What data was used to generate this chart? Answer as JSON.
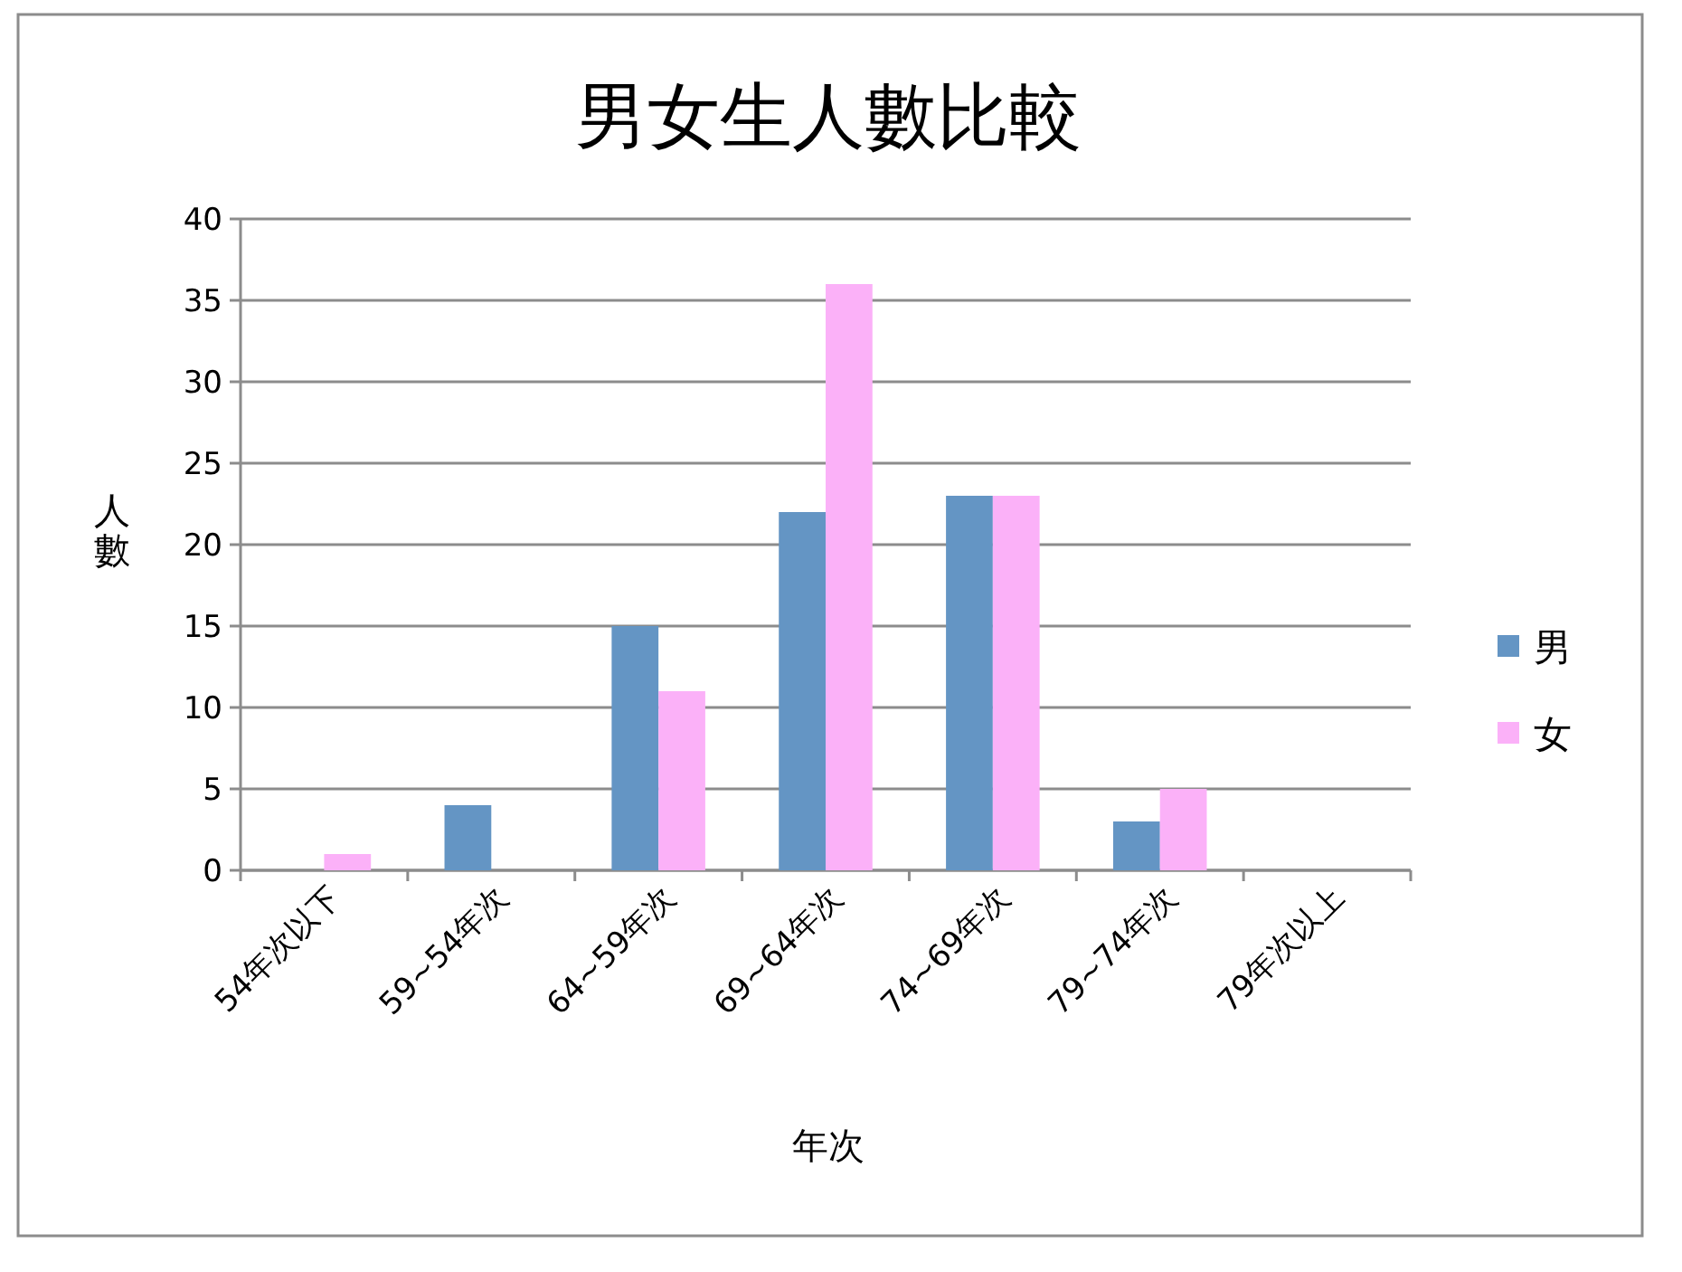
{
  "chart_data": {
    "type": "bar",
    "title": "男女生人數比較",
    "xlabel": "年次",
    "ylabel": "人數",
    "categories": [
      "54年次以下",
      "59~54年次",
      "64~59年次",
      "69~64年次",
      "74~69年次",
      "79~74年次",
      "79年次以上"
    ],
    "series": [
      {
        "name": "男",
        "color": "#6495c4",
        "values": [
          0,
          4,
          15,
          22,
          23,
          3,
          0
        ]
      },
      {
        "name": "女",
        "color": "#fbb1f8",
        "values": [
          1,
          0,
          11,
          36,
          23,
          5,
          0
        ]
      }
    ],
    "ylim": [
      0,
      40
    ],
    "yticks": [
      0,
      5,
      10,
      15,
      20,
      25,
      30,
      35,
      40
    ],
    "grid": "y",
    "legend": "right"
  }
}
